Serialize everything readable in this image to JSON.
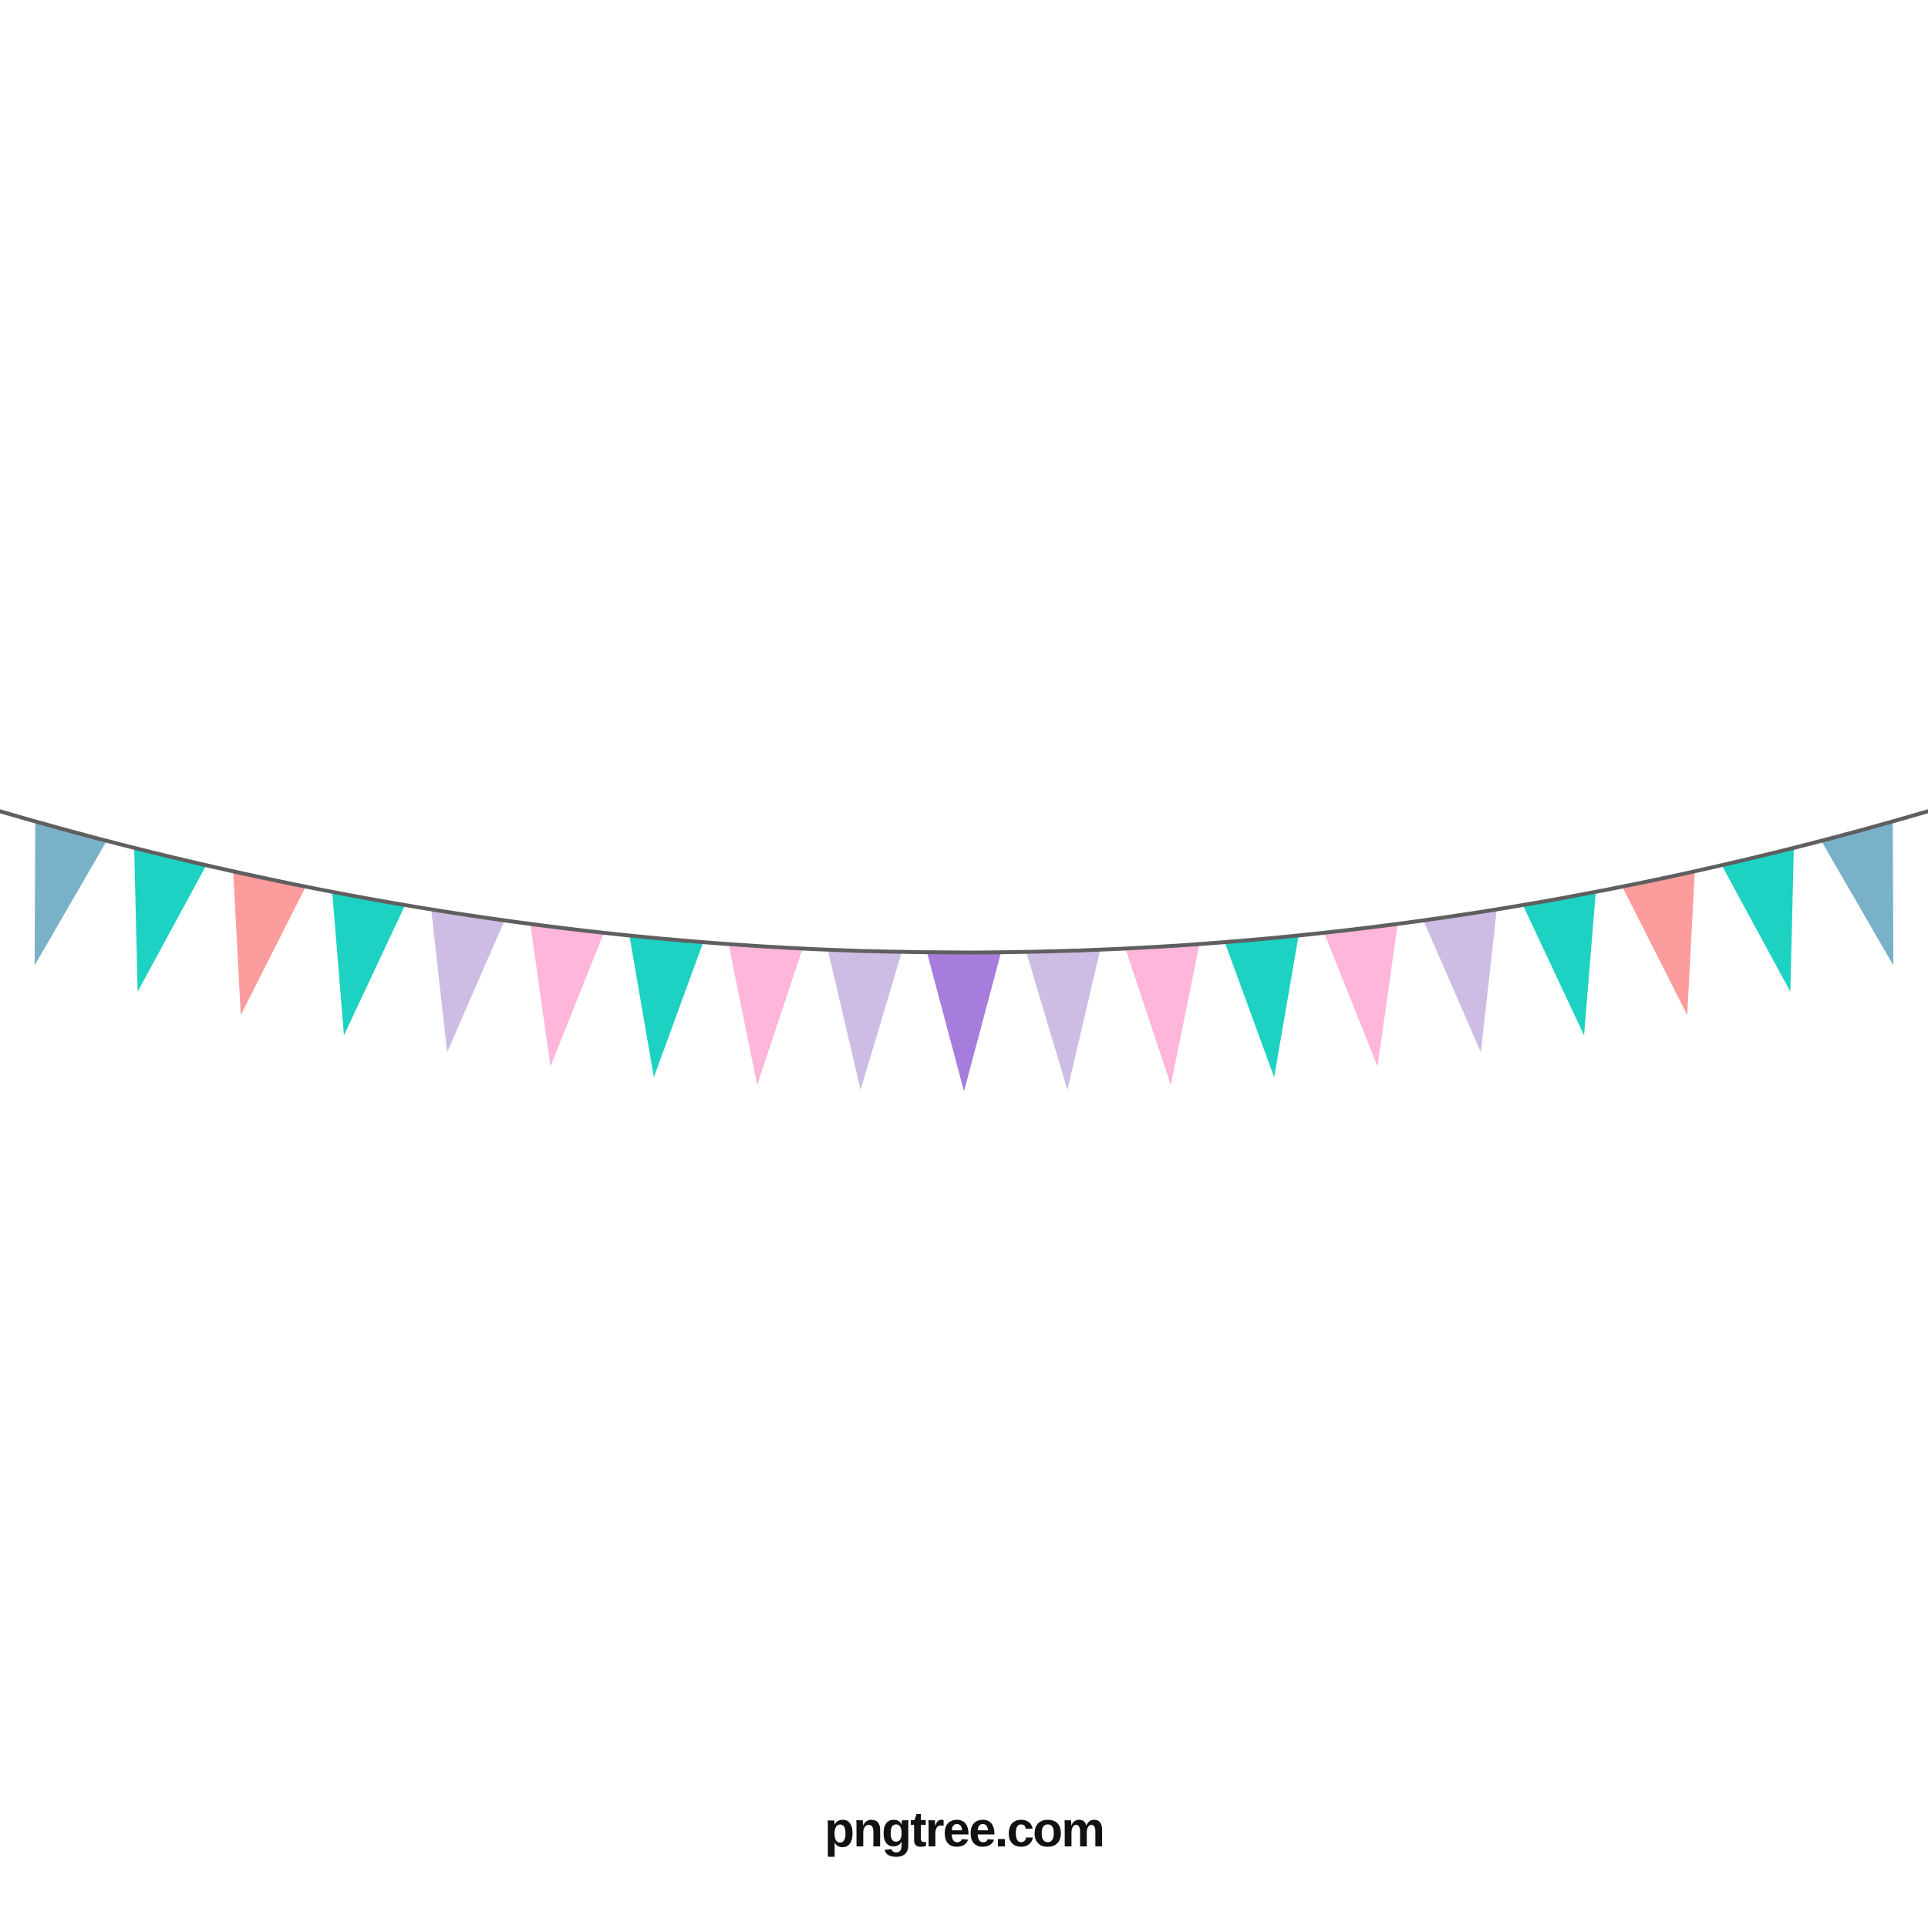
{
  "colors": {
    "background": "#ffffff",
    "string": "#5f5f5f",
    "steel_blue": "#79b1c8",
    "teal": "#1dd2c2",
    "salmon": "#fd9c9c",
    "lavender": "#cdbde4",
    "pink": "#ffb6da",
    "purple": "#a67ddc"
  },
  "bunting": {
    "flag_colors": [
      "steel_blue",
      "teal",
      "salmon",
      "teal",
      "lavender",
      "pink",
      "teal",
      "pink",
      "lavender",
      "purple",
      "lavender",
      "pink",
      "teal",
      "pink",
      "lavender",
      "teal",
      "salmon",
      "teal",
      "steel_blue"
    ]
  },
  "watermark": {
    "text": "pngtree.com"
  }
}
